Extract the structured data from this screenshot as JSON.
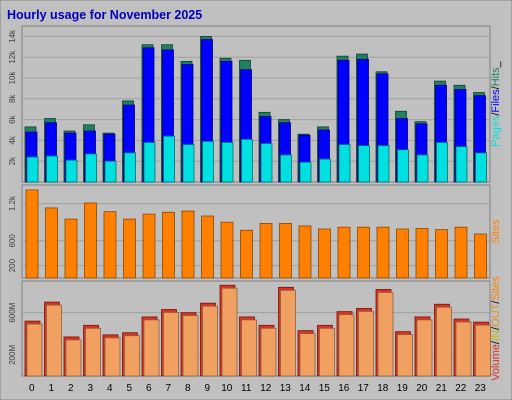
{
  "title": "Hourly usage for November 2025",
  "colors": {
    "frame_bg": "#c0c0c0",
    "title": "#0000c0",
    "pages": "#00e0e0",
    "files": "#0000ff",
    "hits": "#208060",
    "sites": "#ff8000",
    "visits": "#ff8000",
    "volume": "#e03020",
    "in": "#f0a060",
    "out": "#e09020"
  },
  "chart_data": [
    {
      "type": "bar",
      "name": "hits-files-pages",
      "categories": [
        "0",
        "1",
        "2",
        "3",
        "4",
        "5",
        "6",
        "7",
        "8",
        "9",
        "10",
        "11",
        "12",
        "13",
        "14",
        "15",
        "16",
        "17",
        "18",
        "19",
        "20",
        "21",
        "22",
        "23"
      ],
      "ylim": [
        0,
        15000
      ],
      "y_ticks": [
        "2k",
        "4k",
        "6k",
        "8k",
        "10k",
        "12k",
        "14k"
      ],
      "y_tick_values": [
        2000,
        4000,
        6000,
        8000,
        10000,
        12000,
        14000
      ],
      "series": [
        {
          "name": "Hits",
          "values": [
            5300,
            6100,
            4900,
            5500,
            4700,
            7800,
            13200,
            13200,
            11600,
            14000,
            11900,
            11700,
            6700,
            6000,
            4600,
            5300,
            12100,
            12300,
            10600,
            6800,
            5800,
            9700,
            9300,
            8600
          ]
        },
        {
          "name": "Files",
          "values": [
            4800,
            5700,
            4700,
            4900,
            4600,
            7400,
            12900,
            12700,
            11300,
            13700,
            11600,
            10800,
            6300,
            5700,
            4500,
            5000,
            11700,
            11800,
            10400,
            6100,
            5600,
            9300,
            8900,
            8300
          ]
        },
        {
          "name": "Pages",
          "values": [
            2400,
            2500,
            2100,
            2700,
            2000,
            2800,
            3800,
            4400,
            3600,
            3900,
            3800,
            4100,
            3700,
            2600,
            1900,
            2200,
            3600,
            3500,
            3500,
            3100,
            2600,
            3800,
            3400,
            2800
          ]
        }
      ],
      "legend": [
        "Pages",
        "/",
        "Files",
        "/",
        "Hits",
        "_"
      ]
    },
    {
      "type": "bar",
      "name": "sites",
      "categories": [
        "0",
        "1",
        "2",
        "3",
        "4",
        "5",
        "6",
        "7",
        "8",
        "9",
        "10",
        "11",
        "12",
        "13",
        "14",
        "15",
        "16",
        "17",
        "18",
        "19",
        "20",
        "21",
        "22",
        "23"
      ],
      "ylim": [
        0,
        1500
      ],
      "y_ticks": [
        "200",
        "600",
        "1.2k"
      ],
      "y_tick_values": [
        200,
        600,
        1200
      ],
      "series": [
        {
          "name": "Sites",
          "values": [
            1420,
            1130,
            950,
            1210,
            1070,
            950,
            1030,
            1060,
            1080,
            1000,
            900,
            770,
            880,
            880,
            840,
            790,
            820,
            820,
            820,
            790,
            800,
            780,
            820,
            710
          ]
        }
      ],
      "legend": [
        "Sites"
      ]
    },
    {
      "type": "bar",
      "name": "volume",
      "categories": [
        "0",
        "1",
        "2",
        "3",
        "4",
        "5",
        "6",
        "7",
        "8",
        "9",
        "10",
        "11",
        "12",
        "13",
        "14",
        "15",
        "16",
        "17",
        "18",
        "19",
        "20",
        "21",
        "22",
        "23"
      ],
      "ylim": [
        0,
        900
      ],
      "y_ticks": [
        "200M",
        "600M"
      ],
      "y_tick_values": [
        200,
        600
      ],
      "unit": "M",
      "series": [
        {
          "name": "Volume",
          "values": [
            520,
            700,
            370,
            480,
            390,
            410,
            560,
            630,
            600,
            690,
            860,
            560,
            480,
            840,
            430,
            480,
            610,
            640,
            820,
            420,
            560,
            680,
            540,
            510
          ]
        }
      ],
      "legend": [
        "Volume",
        "/",
        "IN",
        "/",
        "OUT",
        "/",
        "Sites"
      ]
    }
  ]
}
